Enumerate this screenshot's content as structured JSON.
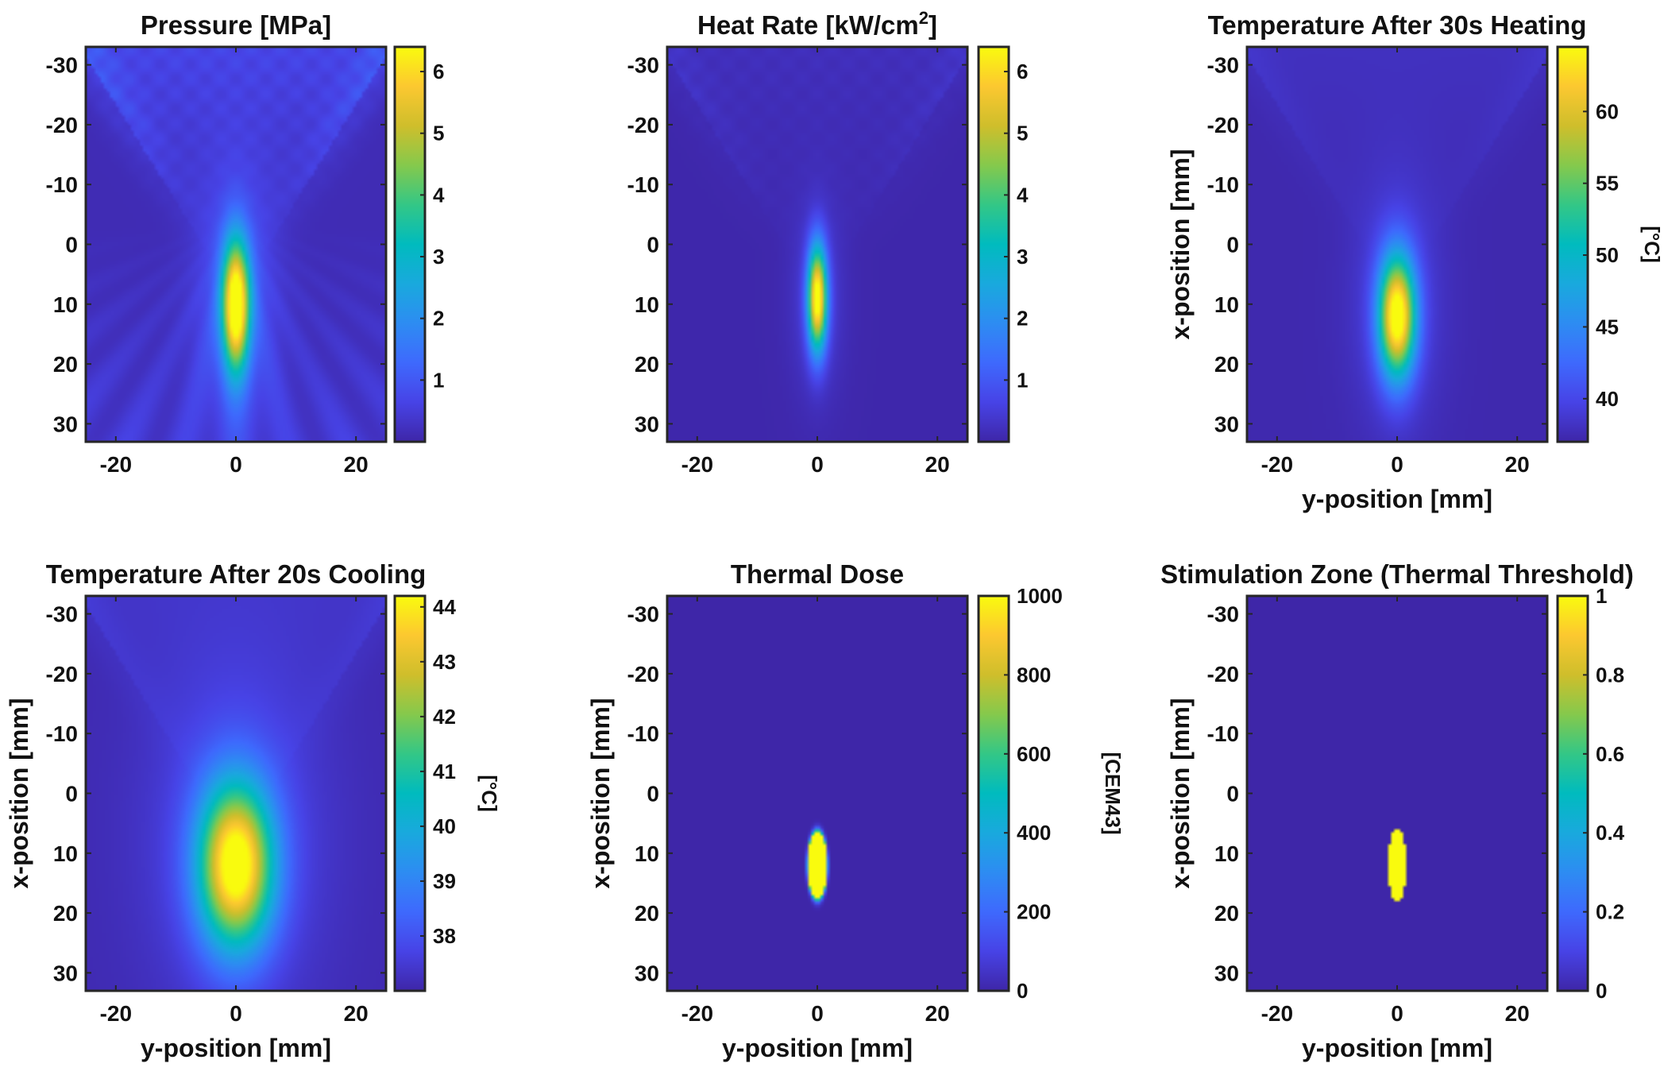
{
  "chart_data": [
    {
      "type": "heatmap",
      "title": "Pressure [MPa]",
      "field": "pressure",
      "xlabel": "",
      "ylabel": "",
      "x_ticks": [
        "-20",
        "0",
        "20"
      ],
      "y_ticks": [
        "-30",
        "-20",
        "-10",
        "0",
        "10",
        "20",
        "30"
      ],
      "y_range_mm": [
        -33,
        33
      ],
      "x_range_mm": [
        -25,
        25
      ],
      "colorbar": {
        "min": 0,
        "max": 6.4,
        "ticks": [
          "1",
          "2",
          "3",
          "4",
          "5",
          "6"
        ],
        "tick_values": [
          1,
          2,
          3,
          4,
          5,
          6
        ],
        "label": ""
      },
      "focus": {
        "x_mm": 0,
        "y_mm": 10,
        "peak": 6.4
      }
    },
    {
      "type": "heatmap",
      "title": "Heat Rate [kW/cm",
      "title_sup": "2",
      "title_end": "]",
      "field": "heatrate",
      "xlabel": "",
      "ylabel": "",
      "x_ticks": [
        "-20",
        "0",
        "20"
      ],
      "y_ticks": [
        "-30",
        "-20",
        "-10",
        "0",
        "10",
        "20",
        "30"
      ],
      "y_range_mm": [
        -33,
        33
      ],
      "x_range_mm": [
        -25,
        25
      ],
      "colorbar": {
        "min": 0,
        "max": 6.4,
        "ticks": [
          "1",
          "2",
          "3",
          "4",
          "5",
          "6"
        ],
        "tick_values": [
          1,
          2,
          3,
          4,
          5,
          6
        ],
        "label": ""
      },
      "focus": {
        "x_mm": 0,
        "y_mm": 9,
        "peak": 6.4
      }
    },
    {
      "type": "heatmap",
      "title": "Temperature After 30s Heating",
      "field": "temp30",
      "xlabel": "y-position [mm]",
      "ylabel": "x-position [mm]",
      "x_ticks": [
        "-20",
        "0",
        "20"
      ],
      "y_ticks": [
        "-30",
        "-20",
        "-10",
        "0",
        "10",
        "20",
        "30"
      ],
      "y_range_mm": [
        -33,
        33
      ],
      "x_range_mm": [
        -25,
        25
      ],
      "colorbar": {
        "min": 37,
        "max": 64.5,
        "ticks": [
          "40",
          "45",
          "50",
          "55",
          "60"
        ],
        "tick_values": [
          40,
          45,
          50,
          55,
          60
        ],
        "label": "[°C]"
      },
      "focus": {
        "x_mm": 0,
        "y_mm": 12,
        "peak": 64.5
      }
    },
    {
      "type": "heatmap",
      "title": "Temperature After 20s Cooling",
      "field": "temp20",
      "xlabel": "y-position [mm]",
      "ylabel": "x-position [mm]",
      "x_ticks": [
        "-20",
        "0",
        "20"
      ],
      "y_ticks": [
        "-30",
        "-20",
        "-10",
        "0",
        "10",
        "20",
        "30"
      ],
      "y_range_mm": [
        -33,
        33
      ],
      "x_range_mm": [
        -25,
        25
      ],
      "colorbar": {
        "min": 37,
        "max": 44.2,
        "ticks": [
          "38",
          "39",
          "40",
          "41",
          "42",
          "43",
          "44"
        ],
        "tick_values": [
          38,
          39,
          40,
          41,
          42,
          43,
          44
        ],
        "label": "[°C]"
      },
      "focus": {
        "x_mm": 0,
        "y_mm": 12,
        "peak": 44.2
      }
    },
    {
      "type": "heatmap",
      "title": "Thermal Dose",
      "field": "dose",
      "xlabel": "y-position [mm]",
      "ylabel": "x-position [mm]",
      "x_ticks": [
        "-20",
        "0",
        "20"
      ],
      "y_ticks": [
        "-30",
        "-20",
        "-10",
        "0",
        "10",
        "20",
        "30"
      ],
      "y_range_mm": [
        -33,
        33
      ],
      "x_range_mm": [
        -25,
        25
      ],
      "colorbar": {
        "min": 0,
        "max": 1000,
        "ticks": [
          "0",
          "200",
          "400",
          "600",
          "800",
          "1000"
        ],
        "tick_values": [
          0,
          200,
          400,
          600,
          800,
          1000
        ],
        "label": "[CEM43]"
      },
      "focus": {
        "x_mm": 0,
        "y_mm": 12,
        "peak": 1000
      }
    },
    {
      "type": "heatmap",
      "title": "Stimulation Zone (Thermal Threshold)",
      "field": "zone",
      "xlabel": "y-position [mm]",
      "ylabel": "x-position [mm]",
      "x_ticks": [
        "-20",
        "0",
        "20"
      ],
      "y_ticks": [
        "-30",
        "-20",
        "-10",
        "0",
        "10",
        "20",
        "30"
      ],
      "y_range_mm": [
        -33,
        33
      ],
      "x_range_mm": [
        -25,
        25
      ],
      "colorbar": {
        "min": 0,
        "max": 1,
        "ticks": [
          "0",
          "0.2",
          "0.4",
          "0.6",
          "0.8",
          "1"
        ],
        "tick_values": [
          0,
          0.2,
          0.4,
          0.6,
          0.8,
          1
        ],
        "label": ""
      },
      "focus": {
        "x_mm": 0,
        "y_mm": 12,
        "peak": 1
      }
    }
  ]
}
